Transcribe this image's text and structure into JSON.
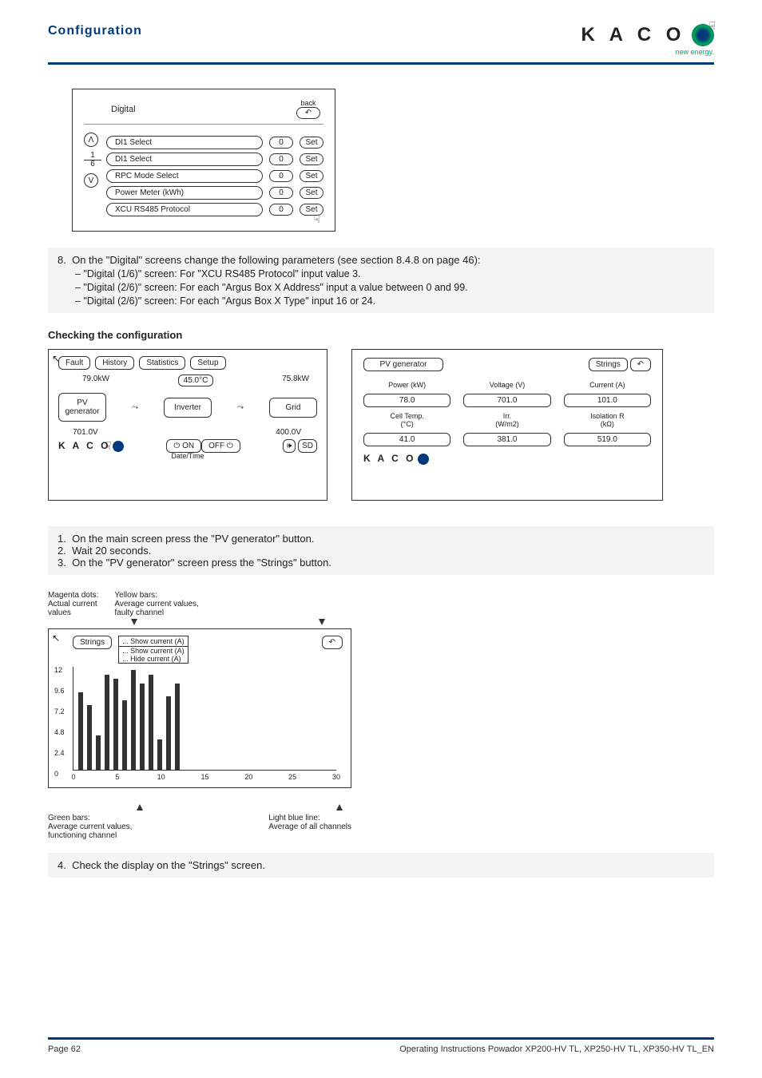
{
  "header": {
    "title": "Configuration",
    "logoText": "K A C O",
    "logoTag": "new energy."
  },
  "digital": {
    "title": "Digital",
    "backLabel": "back",
    "pageTop": "1",
    "pageBot": "6",
    "sideTop": "Λ",
    "sideBot": "V",
    "rows": [
      {
        "label": "DI1 Select",
        "val": "0",
        "btn": "Set"
      },
      {
        "label": "DI1 Select",
        "val": "0",
        "btn": "Set"
      },
      {
        "label": "RPC Mode Select",
        "val": "0",
        "btn": "Set"
      },
      {
        "label": "Power Meter (kWh)",
        "val": "0",
        "btn": "Set"
      },
      {
        "label": "XCU RS485 Protocol",
        "val": "0",
        "btn": "Set"
      }
    ]
  },
  "step8": {
    "n": "8.",
    "text": "On the \"Digital\" screens change the following parameters (see section 8.4.8 on page 46):",
    "subs": [
      "\"Digital (1/6)\" screen: For \"XCU RS485 Protocol\" input value 3.",
      "\"Digital (2/6)\" screen: For each \"Argus Box X Address\" input a value between 0 and 99.",
      "\"Digital (2/6)\" screen: For each \"Argus Box X Type\" input 16 or 24."
    ]
  },
  "checkHeading": "Checking the configuration",
  "sys": {
    "tabs": [
      "Fault",
      "History",
      "Statistics",
      "Setup"
    ],
    "pvkw": "79.0kW",
    "gridkw": "75.8kW",
    "temp": "45.0°C",
    "pvLabel": "PV\ngenerator",
    "invLabel": "Inverter",
    "gridLabel": "Grid",
    "pvV": "701.0V",
    "gridV": "400.0V",
    "on": "ON",
    "off": "OFF",
    "dt": "Date/Time",
    "kaco": "K A C O"
  },
  "pvg": {
    "title": "PV generator",
    "stringsBtn": "Strings",
    "labels": [
      "Power (kW)",
      "Voltage (V)",
      "Current (A)",
      "Cell Temp.\n(°C)",
      "Irr.\n(W/m2)",
      "Isolation R\n(kΩ)"
    ],
    "vals": [
      "78.0",
      "701.0",
      "101.0",
      "41.0",
      "381.0",
      "519.0"
    ],
    "kaco": "K A C O"
  },
  "steps123": [
    {
      "n": "1.",
      "t": "On the main screen press the \"PV generator\" button."
    },
    {
      "n": "2.",
      "t": "Wait 20 seconds."
    },
    {
      "n": "3.",
      "t": "On the \"PV generator\" screen press the \"Strings\" button."
    }
  ],
  "legendTop": {
    "l1a": "Magenta dots:",
    "l1b": "Actual current",
    "l1c": "values",
    "r1a": "Yellow bars:",
    "r1b": "Average current values,",
    "r1c": "faulty channel"
  },
  "chart": {
    "title": "Strings",
    "dd1": "... Show current (A)",
    "dd2": "... Show current (A)",
    "dd3": "... Hide current (A)",
    "yticks": [
      "12",
      "9.6",
      "7.2",
      "4.8",
      "2.4",
      "0"
    ],
    "xticks": [
      "0",
      "5",
      "10",
      "15",
      "20",
      "25",
      "30"
    ],
    "bars": [
      9,
      7.5,
      4,
      11,
      10.5,
      8,
      11.5,
      10,
      11,
      3.5,
      8.5,
      10
    ]
  },
  "legendBot": {
    "l1": "Green bars:",
    "l2": "Average current values,",
    "l3": "functioning channel",
    "r1": "Light blue line:",
    "r2": "Average of all channels"
  },
  "step4": {
    "n": "4.",
    "t": "Check the display on the \"Strings\" screen."
  },
  "footer": {
    "left": "Page 62",
    "right": "Operating Instructions Powador XP200-HV TL, XP250-HV TL, XP350-HV TL_EN"
  }
}
